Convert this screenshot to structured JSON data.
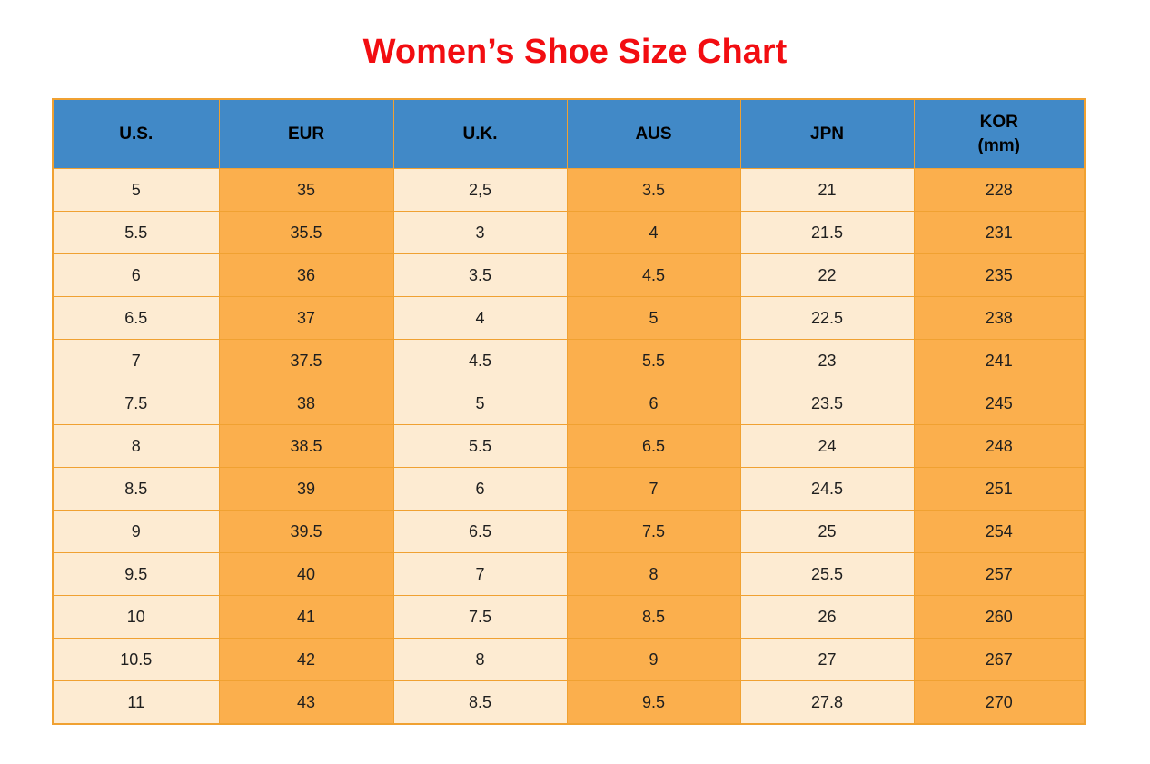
{
  "colors": {
    "title_red": "#F20D11",
    "header_blue": "#4189C7",
    "cell_orange": "#FBAF4D",
    "cell_cream": "#FDEBD2",
    "grid_orange": "#F0A132",
    "text_black": "#1F1F1F"
  },
  "chart_data": {
    "type": "table",
    "title": "Women’s Shoe Size Chart",
    "headers": [
      {
        "label": "U.S.",
        "sub": ""
      },
      {
        "label": "EUR",
        "sub": ""
      },
      {
        "label": "U.K.",
        "sub": ""
      },
      {
        "label": "AUS",
        "sub": ""
      },
      {
        "label": "JPN",
        "sub": ""
      },
      {
        "label": "KOR",
        "sub": "(mm)"
      }
    ],
    "rows": [
      [
        "5",
        "35",
        "2,5",
        "3.5",
        "21",
        "228"
      ],
      [
        "5.5",
        "35.5",
        "3",
        "4",
        "21.5",
        "231"
      ],
      [
        "6",
        "36",
        "3.5",
        "4.5",
        "22",
        "235"
      ],
      [
        "6.5",
        "37",
        "4",
        "5",
        "22.5",
        "238"
      ],
      [
        "7",
        "37.5",
        "4.5",
        "5.5",
        "23",
        "241"
      ],
      [
        "7.5",
        "38",
        "5",
        "6",
        "23.5",
        "245"
      ],
      [
        "8",
        "38.5",
        "5.5",
        "6.5",
        "24",
        "248"
      ],
      [
        "8.5",
        "39",
        "6",
        "7",
        "24.5",
        "251"
      ],
      [
        "9",
        "39.5",
        "6.5",
        "7.5",
        "25",
        "254"
      ],
      [
        "9.5",
        "40",
        "7",
        "8",
        "25.5",
        "257"
      ],
      [
        "10",
        "41",
        "7.5",
        "8.5",
        "26",
        "260"
      ],
      [
        "10.5",
        "42",
        "8",
        "9",
        "27",
        "267"
      ],
      [
        "11",
        "43",
        "8.5",
        "9.5",
        "27.8",
        "270"
      ]
    ]
  }
}
